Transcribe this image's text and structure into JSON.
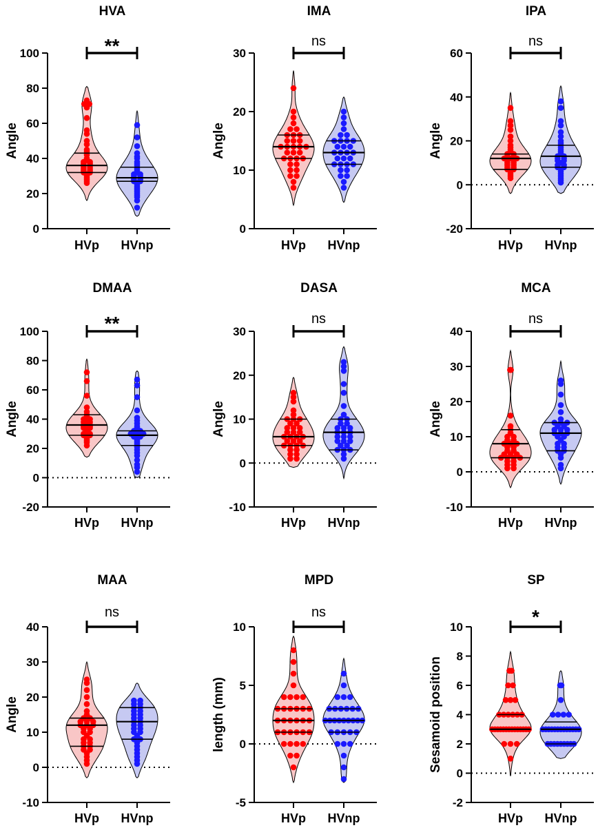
{
  "figure": {
    "categories": [
      "HVp",
      "HVnp"
    ]
  },
  "colors": {
    "HVp": {
      "point": "#ff0000",
      "fill": "#f9c6c6"
    },
    "HVnp": {
      "point": "#1a1aff",
      "fill": "#c6c9f2"
    },
    "axis": "#000000"
  },
  "chart_data": [
    {
      "type": "violin",
      "title": "HVA",
      "ylabel": "Angle",
      "ylim": [
        0,
        100
      ],
      "yticks": [
        0,
        20,
        40,
        60,
        80,
        100
      ],
      "zero_line": false,
      "significance": "**",
      "series": [
        {
          "name": "HVp",
          "range": [
            16,
            81
          ],
          "quartiles": [
            32,
            36,
            43
          ],
          "points": [
            71,
            71,
            73,
            69,
            63,
            56,
            54,
            50,
            48,
            45,
            44,
            42,
            40,
            39,
            38,
            38,
            37,
            37,
            36,
            36,
            35,
            35,
            34,
            34,
            33,
            33,
            32,
            32,
            31,
            30,
            29,
            28,
            27,
            26
          ]
        },
        {
          "name": "HVnp",
          "range": [
            7,
            67
          ],
          "quartiles": [
            27,
            29,
            35
          ],
          "points": [
            59,
            52,
            47,
            43,
            41,
            40,
            38,
            37,
            36,
            35,
            34,
            33,
            32,
            31,
            31,
            30,
            30,
            29,
            29,
            28,
            28,
            27,
            27,
            26,
            25,
            24,
            23,
            22,
            21,
            20,
            19,
            18,
            16,
            12
          ]
        }
      ]
    },
    {
      "type": "violin",
      "title": "IMA",
      "ylabel": "Angle",
      "ylim": [
        0,
        30
      ],
      "yticks": [
        0,
        10,
        20,
        30
      ],
      "zero_line": false,
      "significance": "ns",
      "series": [
        {
          "name": "HVp",
          "range": [
            4,
            27
          ],
          "quartiles": [
            12,
            14,
            16
          ],
          "points": [
            24,
            20,
            19,
            18,
            17,
            17,
            16,
            16,
            16,
            15,
            15,
            15,
            14,
            14,
            14,
            14,
            14,
            13,
            13,
            13,
            12,
            12,
            12,
            12,
            11,
            11,
            10,
            10,
            9,
            9,
            8,
            7
          ]
        },
        {
          "name": "HVnp",
          "range": [
            4.5,
            22.5
          ],
          "quartiles": [
            11,
            13,
            15
          ],
          "points": [
            20,
            19,
            18,
            17,
            16,
            16,
            15,
            15,
            15,
            15,
            14,
            14,
            14,
            13,
            13,
            13,
            13,
            12,
            12,
            12,
            11,
            11,
            11,
            11,
            10,
            10,
            9,
            9,
            8,
            7
          ]
        }
      ]
    },
    {
      "type": "violin",
      "title": "IPA",
      "ylabel": "Angle",
      "ylim": [
        -20,
        60
      ],
      "yticks": [
        -20,
        0,
        20,
        40,
        60
      ],
      "zero_line": true,
      "significance": "ns",
      "series": [
        {
          "name": "HVp",
          "range": [
            -4,
            42
          ],
          "quartiles": [
            7,
            12,
            14
          ],
          "points": [
            35,
            29,
            27,
            25,
            22,
            20,
            18,
            17,
            16,
            15,
            14,
            14,
            13,
            13,
            12,
            12,
            12,
            11,
            11,
            10,
            10,
            9,
            9,
            8,
            8,
            7,
            7,
            6,
            5,
            4,
            3
          ]
        },
        {
          "name": "HVnp",
          "range": [
            -4,
            45
          ],
          "quartiles": [
            8,
            13,
            18
          ],
          "points": [
            38,
            35,
            29,
            27,
            24,
            22,
            20,
            19,
            18,
            17,
            16,
            15,
            14,
            13,
            13,
            12,
            12,
            11,
            11,
            10,
            9,
            9,
            8,
            8,
            7,
            6,
            5,
            4,
            3,
            2,
            1
          ]
        }
      ]
    },
    {
      "type": "violin",
      "title": "DMAA",
      "ylabel": "Angle",
      "ylim": [
        -20,
        100
      ],
      "yticks": [
        -20,
        0,
        20,
        40,
        60,
        80,
        100
      ],
      "zero_line": true,
      "significance": "**",
      "series": [
        {
          "name": "HVp",
          "range": [
            14,
            81
          ],
          "quartiles": [
            29,
            36,
            43
          ],
          "points": [
            72,
            66,
            56,
            48,
            45,
            43,
            42,
            41,
            40,
            40,
            39,
            38,
            38,
            37,
            36,
            36,
            35,
            35,
            34,
            34,
            33,
            32,
            31,
            30,
            30,
            29,
            29,
            28,
            27,
            26,
            25,
            24,
            22
          ]
        },
        {
          "name": "HVnp",
          "range": [
            0,
            73
          ],
          "quartiles": [
            22,
            29,
            32
          ],
          "points": [
            67,
            63,
            55,
            46,
            41,
            39,
            37,
            35,
            34,
            33,
            32,
            32,
            31,
            31,
            30,
            30,
            30,
            29,
            29,
            28,
            28,
            27,
            26,
            25,
            24,
            23,
            22,
            21,
            19,
            17,
            15,
            12,
            9,
            7,
            4
          ]
        }
      ]
    },
    {
      "type": "violin",
      "title": "DASA",
      "ylabel": "Angle",
      "ylim": [
        -10,
        30
      ],
      "yticks": [
        -10,
        0,
        10,
        20,
        30
      ],
      "zero_line": true,
      "significance": "ns",
      "series": [
        {
          "name": "HVp",
          "range": [
            -1,
            19.5
          ],
          "quartiles": [
            4,
            6,
            10
          ],
          "points": [
            16,
            15,
            14,
            12,
            11,
            10,
            10,
            10,
            9,
            9,
            8,
            8,
            8,
            7,
            7,
            7,
            6,
            6,
            6,
            6,
            5,
            5,
            5,
            4,
            4,
            4,
            4,
            3,
            3,
            2,
            2,
            1,
            1
          ]
        },
        {
          "name": "HVnp",
          "range": [
            -3.5,
            26.5
          ],
          "quartiles": [
            3,
            7,
            10
          ],
          "points": [
            23,
            22,
            21,
            18,
            16,
            13,
            11,
            10,
            10,
            9,
            9,
            8,
            8,
            8,
            7,
            7,
            7,
            6,
            6,
            6,
            5,
            5,
            5,
            4,
            4,
            3,
            3,
            3,
            2,
            1
          ]
        }
      ]
    },
    {
      "type": "violin",
      "title": "MCA",
      "ylabel": "Angle",
      "ylim": [
        -10,
        40
      ],
      "yticks": [
        -10,
        0,
        10,
        20,
        30,
        40
      ],
      "zero_line": true,
      "significance": "ns",
      "series": [
        {
          "name": "HVp",
          "range": [
            -4.5,
            34.5
          ],
          "quartiles": [
            4,
            8,
            12
          ],
          "points": [
            29,
            29,
            16,
            13,
            12,
            11,
            10,
            10,
            9,
            9,
            8,
            8,
            8,
            7,
            7,
            6,
            6,
            5,
            5,
            5,
            4,
            4,
            4,
            4,
            3,
            3,
            2,
            2,
            1,
            1
          ]
        },
        {
          "name": "HVnp",
          "range": [
            -3.5,
            31.5
          ],
          "quartiles": [
            6,
            11,
            14
          ],
          "points": [
            26,
            25,
            22,
            19,
            17,
            15,
            14,
            14,
            14,
            13,
            13,
            12,
            12,
            12,
            11,
            11,
            11,
            10,
            10,
            9,
            8,
            8,
            7,
            7,
            6,
            6,
            5,
            4,
            2,
            1
          ]
        }
      ]
    },
    {
      "type": "violin",
      "title": "MAA",
      "ylabel": "Angle",
      "ylim": [
        -10,
        40
      ],
      "yticks": [
        -10,
        0,
        10,
        20,
        30,
        40
      ],
      "zero_line": true,
      "significance": "ns",
      "series": [
        {
          "name": "HVp",
          "range": [
            -3,
            30
          ],
          "quartiles": [
            6,
            12,
            14
          ],
          "points": [
            25,
            24,
            22,
            20,
            18,
            16,
            15,
            14,
            14,
            13,
            13,
            13,
            12,
            12,
            12,
            11,
            11,
            10,
            10,
            9,
            8,
            8,
            7,
            7,
            6,
            6,
            5,
            5,
            4,
            3,
            2,
            1
          ]
        },
        {
          "name": "HVnp",
          "range": [
            -3,
            24
          ],
          "quartiles": [
            8,
            13,
            17
          ],
          "points": [
            19,
            19,
            18,
            18,
            17,
            17,
            16,
            16,
            15,
            15,
            14,
            14,
            13,
            13,
            12,
            12,
            11,
            11,
            10,
            10,
            9,
            8,
            8,
            7,
            6,
            5,
            4,
            3,
            2,
            1
          ]
        }
      ]
    },
    {
      "type": "violin",
      "title": "MPD",
      "ylabel": "length (mm)",
      "ylim": [
        -5,
        10
      ],
      "yticks": [
        -5,
        0,
        5,
        10
      ],
      "zero_line": true,
      "significance": "ns",
      "series": [
        {
          "name": "HVp",
          "range": [
            -3.3,
            9.2
          ],
          "quartiles": [
            1,
            2,
            3
          ],
          "points": [
            8,
            7,
            6,
            5,
            4,
            4,
            4,
            4,
            3,
            3,
            3,
            3,
            3,
            3,
            2,
            2,
            2,
            2,
            2,
            2,
            1,
            1,
            1,
            1,
            1,
            1,
            0,
            0,
            0,
            0,
            -1,
            -1,
            -2
          ]
        },
        {
          "name": "HVnp",
          "range": [
            -3.3,
            7.3
          ],
          "quartiles": [
            1,
            2,
            3
          ],
          "points": [
            6,
            5,
            4,
            4,
            4,
            3,
            3,
            3,
            3,
            3,
            3,
            2,
            2,
            2,
            2,
            2,
            2,
            2,
            2,
            2,
            1,
            1,
            1,
            1,
            1,
            0,
            0,
            0,
            -1,
            -2,
            -3
          ]
        }
      ]
    },
    {
      "type": "violin",
      "title": "SP",
      "ylabel": "Sesamoid position",
      "ylim": [
        -2,
        10
      ],
      "yticks": [
        -2,
        0,
        2,
        4,
        6,
        8,
        10
      ],
      "zero_line": true,
      "significance": "*",
      "series": [
        {
          "name": "HVp",
          "range": [
            -0.2,
            8.3
          ],
          "quartiles": [
            3,
            3,
            4
          ],
          "points": [
            7,
            7,
            6,
            6,
            5,
            5,
            5,
            4,
            4,
            4,
            4,
            4,
            4,
            3,
            3,
            3,
            3,
            3,
            3,
            3,
            3,
            3,
            3,
            3,
            3,
            3,
            3,
            2,
            2,
            2,
            1
          ]
        },
        {
          "name": "HVnp",
          "range": [
            1,
            7
          ],
          "quartiles": [
            2,
            3,
            3.5
          ],
          "points": [
            6,
            6,
            5,
            4,
            4,
            4,
            4,
            3,
            3,
            3,
            3,
            3,
            3,
            3,
            3,
            3,
            3,
            3,
            3,
            3,
            2,
            2,
            2,
            2,
            2,
            2,
            2,
            2,
            2
          ]
        }
      ]
    }
  ]
}
